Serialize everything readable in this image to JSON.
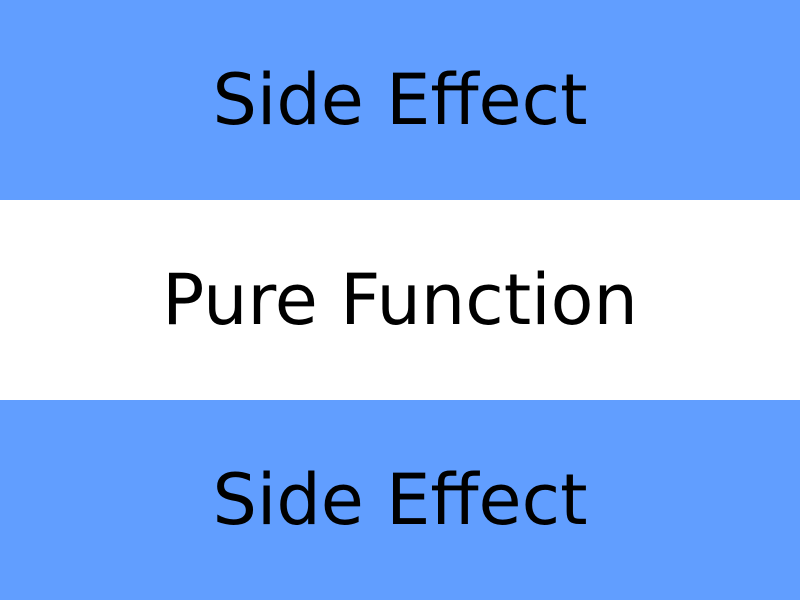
{
  "layers": [
    {
      "label": "Side Effect",
      "color": "#619eff"
    },
    {
      "label": "Pure Function",
      "color": "#ffffff"
    },
    {
      "label": "Side Effect",
      "color": "#619eff"
    }
  ]
}
